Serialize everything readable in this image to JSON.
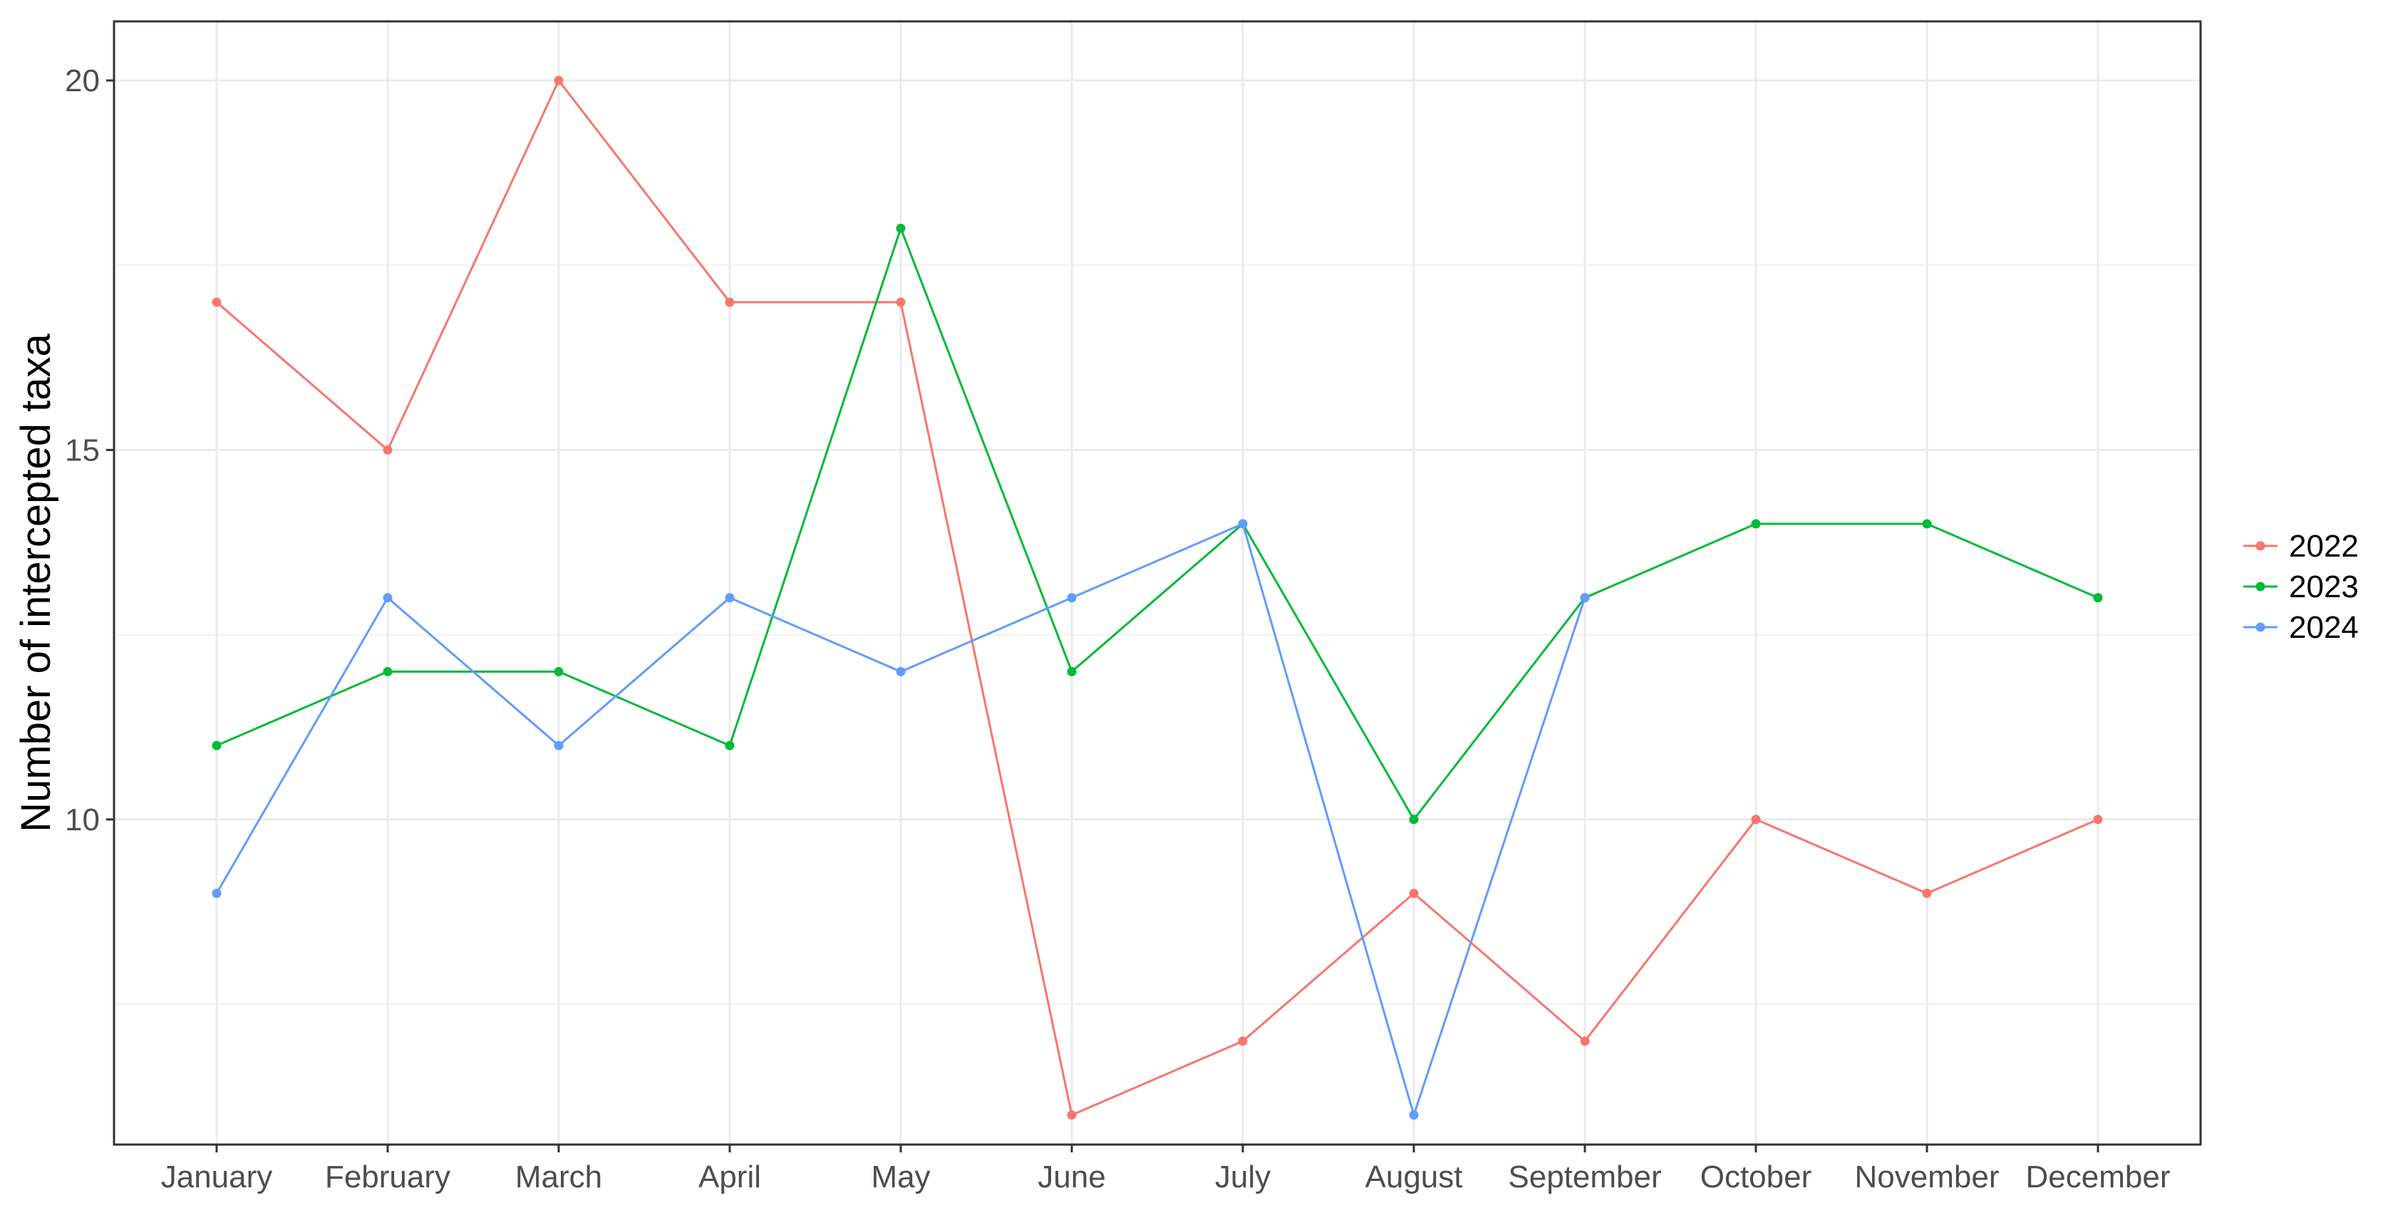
{
  "chart_data": {
    "type": "line",
    "title": "",
    "xlabel": "",
    "ylabel": "Number of intercepted taxa",
    "categories": [
      "January",
      "February",
      "March",
      "April",
      "May",
      "June",
      "July",
      "August",
      "September",
      "October",
      "November",
      "December"
    ],
    "ylim": [
      5.6,
      20.8
    ],
    "yticks": [
      10,
      15,
      20
    ],
    "grid": true,
    "legend_position": "right",
    "series": [
      {
        "name": "2022",
        "color": "#F8766D",
        "values": [
          17,
          15,
          20,
          17,
          17,
          6,
          7,
          9,
          7,
          10,
          9,
          10
        ]
      },
      {
        "name": "2023",
        "color": "#00BA38",
        "values": [
          11,
          12,
          12,
          11,
          18,
          12,
          14,
          10,
          13,
          14,
          14,
          13
        ]
      },
      {
        "name": "2024",
        "color": "#619CFF",
        "values": [
          9,
          13,
          11,
          13,
          12,
          13,
          14,
          6,
          13,
          null,
          null,
          null
        ]
      }
    ]
  }
}
